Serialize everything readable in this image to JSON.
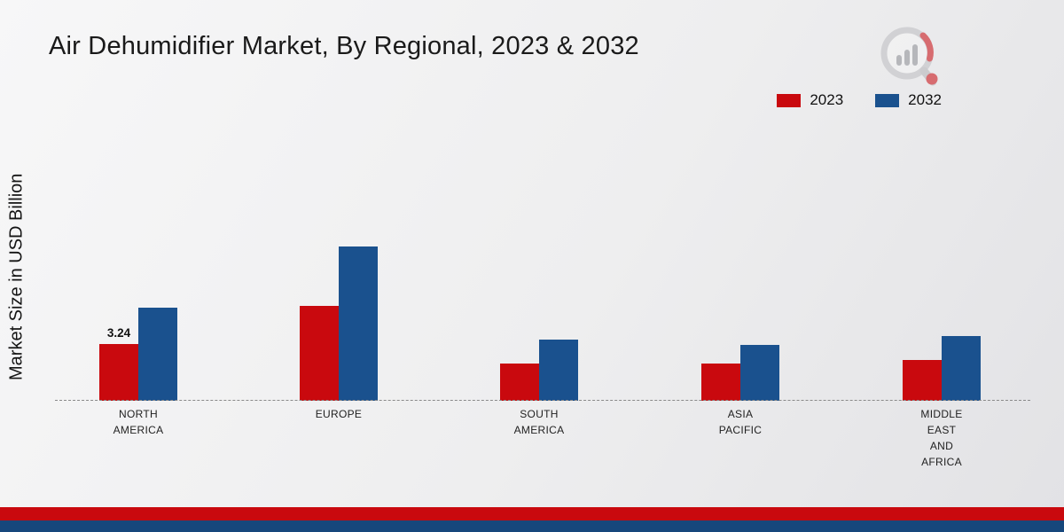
{
  "title": "Air Dehumidifier Market, By Regional, 2023 & 2032",
  "y_axis_label": "Market Size in USD Billion",
  "legend": [
    {
      "label": "2023",
      "color": "#c9090e"
    },
    {
      "label": "2032",
      "color": "#1a518e"
    }
  ],
  "chart_data": {
    "type": "bar",
    "title": "Air Dehumidifier Market, By Regional, 2023 & 2032",
    "xlabel": "",
    "ylabel": "Market Size in USD Billion",
    "unit": "USD Billion",
    "categories": [
      "NORTH\nAMERICA",
      "EUROPE",
      "SOUTH\nAMERICA",
      "ASIA\nPACIFIC",
      "MIDDLE\nEAST\nAND\nAFRICA"
    ],
    "series": [
      {
        "name": "2023",
        "color": "#c9090e",
        "values": [
          3.24,
          5.4,
          2.1,
          2.1,
          2.3
        ]
      },
      {
        "name": "2032",
        "color": "#1a518e",
        "values": [
          5.3,
          8.8,
          3.5,
          3.2,
          3.7
        ]
      }
    ],
    "annotation": {
      "series_index": 0,
      "category_index": 0,
      "text": "3.24"
    },
    "ylim": [
      0,
      10
    ],
    "grid": false,
    "baseline_style": "dashed",
    "legend_position": "top-right"
  },
  "footer": {
    "stripe_colors": [
      "#c9090e",
      "#16477c"
    ]
  }
}
